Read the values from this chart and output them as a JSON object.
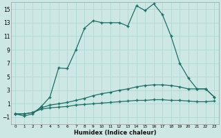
{
  "xlabel": "Humidex (Indice chaleur)",
  "bg_color": "#cde8e4",
  "grid_color": "#b0d8d4",
  "line_color": "#1a6e64",
  "x_values": [
    0,
    1,
    2,
    3,
    4,
    5,
    6,
    7,
    8,
    9,
    10,
    11,
    12,
    13,
    14,
    15,
    16,
    17,
    18,
    19,
    20,
    21,
    22,
    23
  ],
  "series1": [
    -0.5,
    -0.8,
    -0.5,
    0.6,
    2.0,
    6.3,
    6.2,
    9.0,
    12.2,
    13.3,
    13.0,
    13.0,
    13.0,
    12.5,
    15.5,
    14.8,
    15.8,
    14.2,
    11.0,
    7.0,
    4.8,
    3.2,
    3.2,
    2.0
  ],
  "series2": [
    -0.5,
    -0.5,
    -0.3,
    0.4,
    0.8,
    1.0,
    1.2,
    1.5,
    1.8,
    2.2,
    2.5,
    2.7,
    3.0,
    3.2,
    3.5,
    3.7,
    3.8,
    3.8,
    3.7,
    3.5,
    3.2,
    3.2,
    3.2,
    2.0
  ],
  "series3": [
    -0.5,
    -0.5,
    -0.3,
    0.2,
    0.4,
    0.5,
    0.6,
    0.8,
    0.9,
    1.0,
    1.1,
    1.2,
    1.3,
    1.4,
    1.5,
    1.5,
    1.6,
    1.6,
    1.5,
    1.5,
    1.4,
    1.3,
    1.3,
    1.4
  ],
  "ylim": [
    -2,
    16
  ],
  "yticks": [
    -1,
    1,
    3,
    5,
    7,
    9,
    11,
    13,
    15
  ],
  "xlim": [
    -0.5,
    23.5
  ]
}
